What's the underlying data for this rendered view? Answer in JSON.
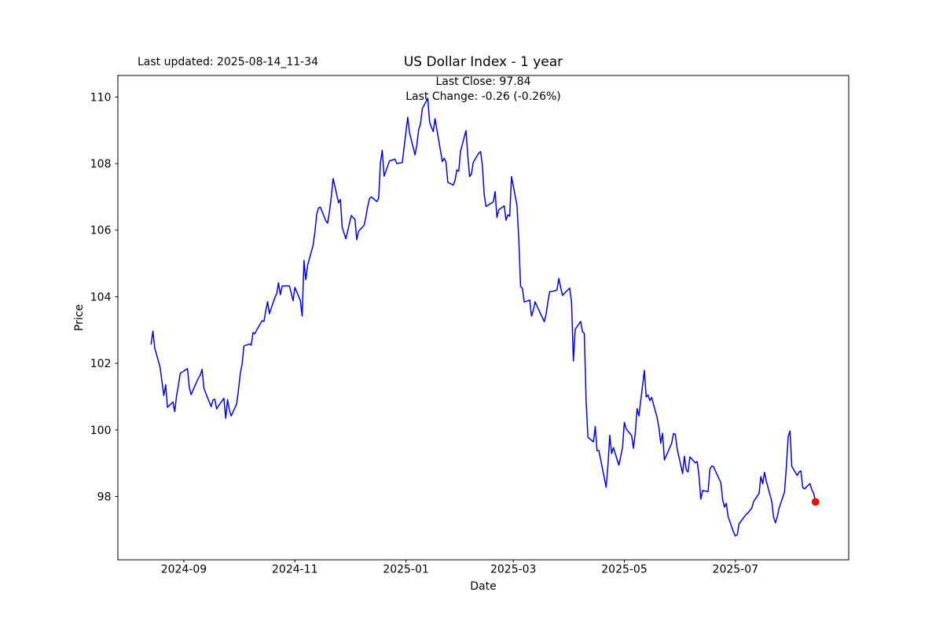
{
  "header": {
    "last_updated": "Last updated: 2025-08-14_11-34",
    "title": "US Dollar Index - 1 year",
    "subtitle_line1": "Last Close: 97.84",
    "subtitle_line2": "Last Change: -0.26 (-0.26%)"
  },
  "chart_data": {
    "type": "line",
    "title": "US Dollar Index - 1 year",
    "xlabel": "Date",
    "ylabel": "Price",
    "grid": false,
    "legend": "none",
    "line_color": "#0000ff",
    "marker_color": "#ff0000",
    "axis_color": "#000000",
    "background_color": "#ffffff",
    "last_close": 97.84,
    "last_change": -0.26,
    "last_change_pct": "-0.26%",
    "date_start": "2024-08-14",
    "date_end": "2025-08-14",
    "x_margin_days": 18.25,
    "ylim": [
      96.1,
      110.645
    ],
    "y_ticks": [
      98,
      100,
      102,
      104,
      106,
      108,
      110
    ],
    "x_ticks": [
      {
        "date": "2024-09-01",
        "label": "2024-09"
      },
      {
        "date": "2024-11-01",
        "label": "2024-11"
      },
      {
        "date": "2025-01-01",
        "label": "2025-01"
      },
      {
        "date": "2025-03-01",
        "label": "2025-03"
      },
      {
        "date": "2025-05-01",
        "label": "2025-05"
      },
      {
        "date": "2025-07-01",
        "label": "2025-07"
      }
    ],
    "series": [
      {
        "name": "US Dollar Index",
        "points": [
          [
            "2024-08-14",
            102.58
          ],
          [
            "2024-08-15",
            102.97
          ],
          [
            "2024-08-16",
            102.46
          ],
          [
            "2024-08-19",
            101.87
          ],
          [
            "2024-08-20",
            101.44
          ],
          [
            "2024-08-21",
            101.03
          ],
          [
            "2024-08-22",
            101.36
          ],
          [
            "2024-08-23",
            100.68
          ],
          [
            "2024-08-26",
            100.84
          ],
          [
            "2024-08-27",
            100.55
          ],
          [
            "2024-08-28",
            101.03
          ],
          [
            "2024-08-29",
            101.34
          ],
          [
            "2024-08-30",
            101.7
          ],
          [
            "2024-09-03",
            101.84
          ],
          [
            "2024-09-04",
            101.27
          ],
          [
            "2024-09-05",
            101.06
          ],
          [
            "2024-09-06",
            101.19
          ],
          [
            "2024-09-09",
            101.56
          ],
          [
            "2024-09-10",
            101.64
          ],
          [
            "2024-09-11",
            101.82
          ],
          [
            "2024-09-12",
            101.26
          ],
          [
            "2024-09-13",
            101.11
          ],
          [
            "2024-09-16",
            100.7
          ],
          [
            "2024-09-17",
            100.9
          ],
          [
            "2024-09-18",
            100.92
          ],
          [
            "2024-09-19",
            100.63
          ],
          [
            "2024-09-20",
            100.72
          ],
          [
            "2024-09-23",
            100.95
          ],
          [
            "2024-09-24",
            100.35
          ],
          [
            "2024-09-25",
            100.91
          ],
          [
            "2024-09-26",
            100.6
          ],
          [
            "2024-09-27",
            100.42
          ],
          [
            "2024-09-30",
            100.78
          ],
          [
            "2024-10-01",
            101.2
          ],
          [
            "2024-10-02",
            101.69
          ],
          [
            "2024-10-03",
            101.98
          ],
          [
            "2024-10-04",
            102.52
          ],
          [
            "2024-10-07",
            102.58
          ],
          [
            "2024-10-08",
            102.55
          ],
          [
            "2024-10-09",
            102.92
          ],
          [
            "2024-10-10",
            102.89
          ],
          [
            "2024-10-11",
            103.0
          ],
          [
            "2024-10-14",
            103.28
          ],
          [
            "2024-10-15",
            103.26
          ],
          [
            "2024-10-16",
            103.58
          ],
          [
            "2024-10-17",
            103.85
          ],
          [
            "2024-10-18",
            103.49
          ],
          [
            "2024-10-21",
            103.98
          ],
          [
            "2024-10-22",
            104.08
          ],
          [
            "2024-10-23",
            104.42
          ],
          [
            "2024-10-24",
            104.06
          ],
          [
            "2024-10-25",
            104.32
          ],
          [
            "2024-10-28",
            104.33
          ],
          [
            "2024-10-29",
            104.32
          ],
          [
            "2024-10-30",
            104.11
          ],
          [
            "2024-10-31",
            103.88
          ],
          [
            "2024-11-01",
            104.28
          ],
          [
            "2024-11-04",
            103.89
          ],
          [
            "2024-11-05",
            103.42
          ],
          [
            "2024-11-06",
            105.09
          ],
          [
            "2024-11-07",
            104.51
          ],
          [
            "2024-11-08",
            104.95
          ],
          [
            "2024-11-11",
            105.54
          ],
          [
            "2024-11-12",
            105.95
          ],
          [
            "2024-11-13",
            106.48
          ],
          [
            "2024-11-14",
            106.67
          ],
          [
            "2024-11-15",
            106.69
          ],
          [
            "2024-11-18",
            106.28
          ],
          [
            "2024-11-19",
            106.21
          ],
          [
            "2024-11-20",
            106.56
          ],
          [
            "2024-11-21",
            107.0
          ],
          [
            "2024-11-22",
            107.55
          ],
          [
            "2024-11-25",
            106.82
          ],
          [
            "2024-11-26",
            106.92
          ],
          [
            "2024-11-27",
            106.08
          ],
          [
            "2024-11-29",
            105.74
          ],
          [
            "2024-12-02",
            106.44
          ],
          [
            "2024-12-03",
            106.38
          ],
          [
            "2024-12-04",
            106.32
          ],
          [
            "2024-12-05",
            105.71
          ],
          [
            "2024-12-06",
            105.97
          ],
          [
            "2024-12-09",
            106.14
          ],
          [
            "2024-12-10",
            106.4
          ],
          [
            "2024-12-11",
            106.71
          ],
          [
            "2024-12-12",
            106.95
          ],
          [
            "2024-12-13",
            107.0
          ],
          [
            "2024-12-16",
            106.86
          ],
          [
            "2024-12-17",
            106.95
          ],
          [
            "2024-12-18",
            108.02
          ],
          [
            "2024-12-19",
            108.4
          ],
          [
            "2024-12-20",
            107.62
          ],
          [
            "2024-12-23",
            108.08
          ],
          [
            "2024-12-26",
            108.13
          ],
          [
            "2024-12-27",
            108.0
          ],
          [
            "2024-12-30",
            108.03
          ],
          [
            "2024-12-31",
            108.49
          ],
          [
            "2025-01-02",
            109.39
          ],
          [
            "2025-01-03",
            108.92
          ],
          [
            "2025-01-06",
            108.26
          ],
          [
            "2025-01-07",
            108.55
          ],
          [
            "2025-01-08",
            109.02
          ],
          [
            "2025-01-09",
            109.18
          ],
          [
            "2025-01-10",
            109.65
          ],
          [
            "2025-01-13",
            109.96
          ],
          [
            "2025-01-14",
            109.25
          ],
          [
            "2025-01-15",
            109.09
          ],
          [
            "2025-01-16",
            108.96
          ],
          [
            "2025-01-17",
            109.35
          ],
          [
            "2025-01-21",
            108.06
          ],
          [
            "2025-01-22",
            108.16
          ],
          [
            "2025-01-23",
            108.05
          ],
          [
            "2025-01-24",
            107.44
          ],
          [
            "2025-01-27",
            107.35
          ],
          [
            "2025-01-28",
            107.5
          ],
          [
            "2025-01-29",
            107.81
          ],
          [
            "2025-01-30",
            107.77
          ],
          [
            "2025-01-31",
            108.37
          ],
          [
            "2025-02-03",
            108.99
          ],
          [
            "2025-02-04",
            108.23
          ],
          [
            "2025-02-05",
            107.61
          ],
          [
            "2025-02-06",
            107.69
          ],
          [
            "2025-02-07",
            108.04
          ],
          [
            "2025-02-10",
            108.31
          ],
          [
            "2025-02-11",
            108.36
          ],
          [
            "2025-02-12",
            107.95
          ],
          [
            "2025-02-13",
            107.07
          ],
          [
            "2025-02-14",
            106.71
          ],
          [
            "2025-02-18",
            106.85
          ],
          [
            "2025-02-19",
            107.16
          ],
          [
            "2025-02-20",
            106.38
          ],
          [
            "2025-02-21",
            106.61
          ],
          [
            "2025-02-24",
            106.73
          ],
          [
            "2025-02-25",
            106.3
          ],
          [
            "2025-02-26",
            106.46
          ],
          [
            "2025-02-27",
            106.42
          ],
          [
            "2025-02-28",
            107.61
          ],
          [
            "2025-03-03",
            106.75
          ],
          [
            "2025-03-04",
            105.74
          ],
          [
            "2025-03-05",
            104.31
          ],
          [
            "2025-03-06",
            104.25
          ],
          [
            "2025-03-07",
            103.84
          ],
          [
            "2025-03-10",
            103.9
          ],
          [
            "2025-03-11",
            103.42
          ],
          [
            "2025-03-12",
            103.6
          ],
          [
            "2025-03-13",
            103.85
          ],
          [
            "2025-03-14",
            103.72
          ],
          [
            "2025-03-17",
            103.37
          ],
          [
            "2025-03-18",
            103.25
          ],
          [
            "2025-03-19",
            103.47
          ],
          [
            "2025-03-20",
            103.85
          ],
          [
            "2025-03-21",
            104.15
          ],
          [
            "2025-03-24",
            104.18
          ],
          [
            "2025-03-25",
            104.21
          ],
          [
            "2025-03-26",
            104.55
          ],
          [
            "2025-03-27",
            104.28
          ],
          [
            "2025-03-28",
            104.04
          ],
          [
            "2025-03-31",
            104.21
          ],
          [
            "2025-04-01",
            104.26
          ],
          [
            "2025-04-02",
            103.83
          ],
          [
            "2025-04-03",
            102.07
          ],
          [
            "2025-04-04",
            103.02
          ],
          [
            "2025-04-07",
            103.26
          ],
          [
            "2025-04-08",
            102.95
          ],
          [
            "2025-04-09",
            102.9
          ],
          [
            "2025-04-10",
            100.87
          ],
          [
            "2025-04-11",
            99.78
          ],
          [
            "2025-04-14",
            99.64
          ],
          [
            "2025-04-15",
            100.1
          ],
          [
            "2025-04-16",
            99.38
          ],
          [
            "2025-04-17",
            99.38
          ],
          [
            "2025-04-21",
            98.28
          ],
          [
            "2025-04-22",
            98.95
          ],
          [
            "2025-04-23",
            99.84
          ],
          [
            "2025-04-24",
            99.29
          ],
          [
            "2025-04-25",
            99.47
          ],
          [
            "2025-04-28",
            98.94
          ],
          [
            "2025-04-29",
            99.2
          ],
          [
            "2025-04-30",
            99.47
          ],
          [
            "2025-05-01",
            100.23
          ],
          [
            "2025-05-02",
            100.03
          ],
          [
            "2025-05-05",
            99.83
          ],
          [
            "2025-05-06",
            99.45
          ],
          [
            "2025-05-07",
            99.9
          ],
          [
            "2025-05-08",
            100.64
          ],
          [
            "2025-05-09",
            100.42
          ],
          [
            "2025-05-12",
            101.79
          ],
          [
            "2025-05-13",
            100.99
          ],
          [
            "2025-05-14",
            101.05
          ],
          [
            "2025-05-15",
            100.88
          ],
          [
            "2025-05-16",
            100.98
          ],
          [
            "2025-05-19",
            100.37
          ],
          [
            "2025-05-20",
            100.07
          ],
          [
            "2025-05-21",
            99.6
          ],
          [
            "2025-05-22",
            99.9
          ],
          [
            "2025-05-23",
            99.1
          ],
          [
            "2025-05-27",
            99.6
          ],
          [
            "2025-05-28",
            99.89
          ],
          [
            "2025-05-29",
            99.87
          ],
          [
            "2025-05-30",
            99.44
          ],
          [
            "2025-06-02",
            98.69
          ],
          [
            "2025-06-03",
            99.21
          ],
          [
            "2025-06-04",
            98.8
          ],
          [
            "2025-06-05",
            98.74
          ],
          [
            "2025-06-06",
            99.19
          ],
          [
            "2025-06-09",
            99.01
          ],
          [
            "2025-06-10",
            99.05
          ],
          [
            "2025-06-11",
            98.63
          ],
          [
            "2025-06-12",
            97.92
          ],
          [
            "2025-06-13",
            98.18
          ],
          [
            "2025-06-16",
            98.15
          ],
          [
            "2025-06-17",
            98.82
          ],
          [
            "2025-06-18",
            98.92
          ],
          [
            "2025-06-19",
            98.9
          ],
          [
            "2025-06-20",
            98.77
          ],
          [
            "2025-06-23",
            98.42
          ],
          [
            "2025-06-24",
            97.91
          ],
          [
            "2025-06-25",
            97.68
          ],
          [
            "2025-06-26",
            97.8
          ],
          [
            "2025-06-27",
            97.4
          ],
          [
            "2025-06-30",
            96.93
          ],
          [
            "2025-07-01",
            96.82
          ],
          [
            "2025-07-02",
            96.85
          ],
          [
            "2025-07-03",
            97.18
          ],
          [
            "2025-07-07",
            97.47
          ],
          [
            "2025-07-08",
            97.51
          ],
          [
            "2025-07-09",
            97.59
          ],
          [
            "2025-07-10",
            97.65
          ],
          [
            "2025-07-11",
            97.85
          ],
          [
            "2025-07-14",
            98.09
          ],
          [
            "2025-07-15",
            98.6
          ],
          [
            "2025-07-16",
            98.38
          ],
          [
            "2025-07-17",
            98.73
          ],
          [
            "2025-07-18",
            98.46
          ],
          [
            "2025-07-21",
            97.85
          ],
          [
            "2025-07-22",
            97.38
          ],
          [
            "2025-07-23",
            97.21
          ],
          [
            "2025-07-24",
            97.39
          ],
          [
            "2025-07-25",
            97.65
          ],
          [
            "2025-07-28",
            98.14
          ],
          [
            "2025-07-29",
            98.89
          ],
          [
            "2025-07-30",
            99.8
          ],
          [
            "2025-07-31",
            99.97
          ],
          [
            "2025-08-01",
            98.9
          ],
          [
            "2025-08-04",
            98.63
          ],
          [
            "2025-08-05",
            98.74
          ],
          [
            "2025-08-06",
            98.77
          ],
          [
            "2025-08-07",
            98.27
          ],
          [
            "2025-08-08",
            98.23
          ],
          [
            "2025-08-11",
            98.39
          ],
          [
            "2025-08-12",
            98.2
          ],
          [
            "2025-08-13",
            98.1
          ],
          [
            "2025-08-14",
            97.84
          ]
        ]
      }
    ]
  }
}
